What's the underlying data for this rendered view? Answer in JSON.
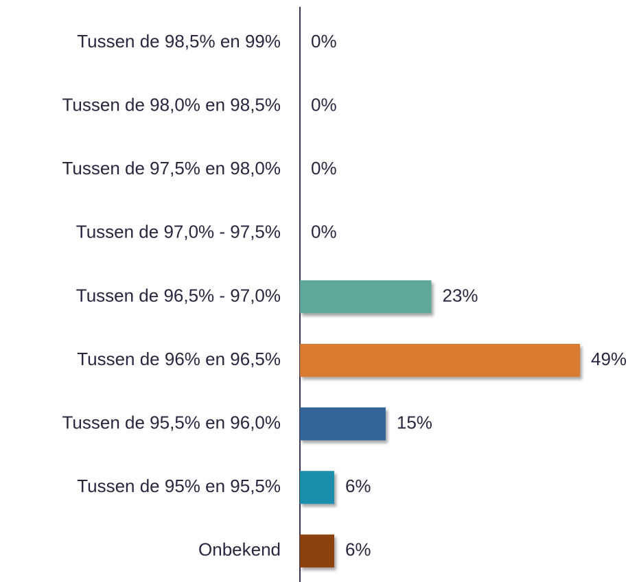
{
  "chart_data": {
    "type": "barh",
    "categories": [
      "Tussen de 98,5% en 99%",
      "Tussen de 98,0% en 98,5%",
      "Tussen de 97,5% en 98,0%",
      "Tussen de 97,0% - 97,5%",
      "Tussen de 96,5% - 97,0%",
      "Tussen de 96% en 96,5%",
      "Tussen de 95,5% en 96,0%",
      "Tussen de 95% en 95,5%",
      "Onbekend"
    ],
    "values": [
      0,
      0,
      0,
      0,
      23,
      49,
      15,
      6,
      6
    ],
    "value_labels": [
      "0%",
      "0%",
      "0%",
      "0%",
      "23%",
      "49%",
      "15%",
      "6%",
      "6%"
    ],
    "colors": [
      null,
      null,
      null,
      null,
      "#5fa898",
      "#d97b30",
      "#336699",
      "#1f8fad",
      "#8b4208"
    ]
  }
}
